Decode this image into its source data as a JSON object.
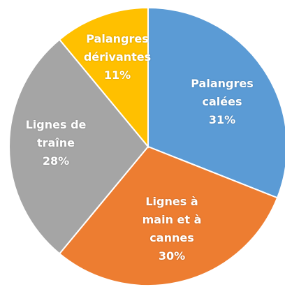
{
  "chart_data": {
    "type": "pie",
    "categories": [
      "Palangres calées",
      "Lignes à main et à cannes",
      "Lignes de traîne",
      "Palangres dérivantes"
    ],
    "values": [
      31,
      30,
      28,
      11
    ],
    "value_labels": [
      "31%",
      "30%",
      "28%",
      "11%"
    ],
    "colors": [
      "#5b9bd5",
      "#ed7d31",
      "#a5a5a5",
      "#ffc000"
    ]
  }
}
